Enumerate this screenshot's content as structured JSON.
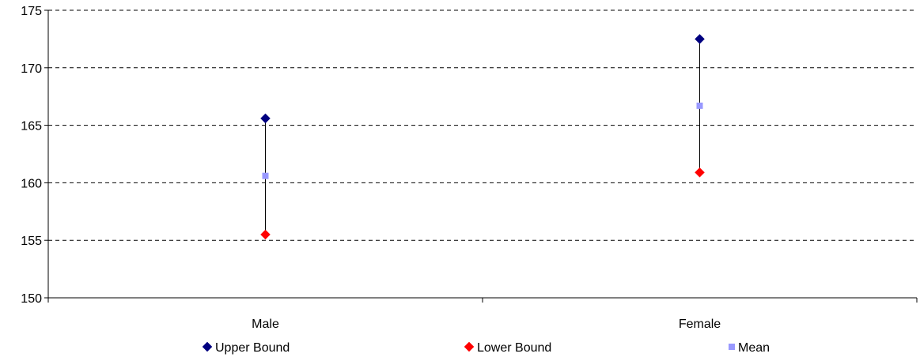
{
  "chart_data": {
    "type": "scatter",
    "title": "",
    "xlabel": "",
    "ylabel": "",
    "categories": [
      "Male",
      "Female"
    ],
    "series": [
      {
        "name": "Upper Bound",
        "values": [
          165.6,
          172.5
        ],
        "color": "#000080",
        "marker": "diamond"
      },
      {
        "name": "Lower Bound",
        "values": [
          155.5,
          160.9
        ],
        "color": "#ff0000",
        "marker": "diamond"
      },
      {
        "name": "Mean",
        "values": [
          160.6,
          166.7
        ],
        "color": "#9999ff",
        "marker": "square"
      }
    ],
    "ylim": [
      150,
      175
    ],
    "yticks": [
      150,
      155,
      160,
      165,
      170,
      175
    ],
    "ytick_labels": [
      "150",
      "155",
      "160",
      "165",
      "170",
      "175"
    ],
    "grid": true,
    "grid_style": "dashed",
    "error_bars": "vertical line from lower bound to upper bound",
    "legend": "bottom"
  }
}
